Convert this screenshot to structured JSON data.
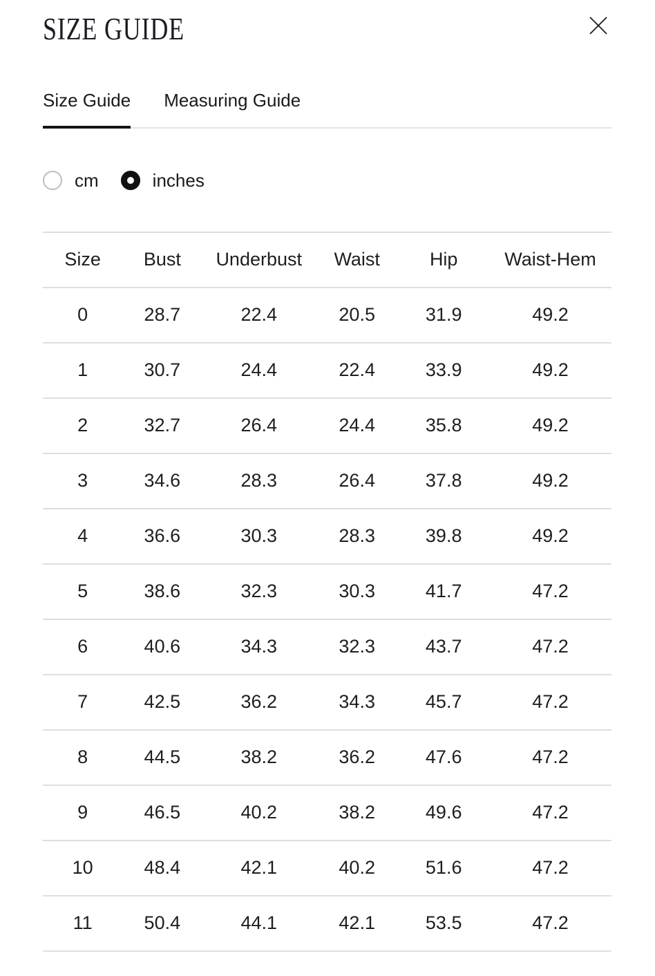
{
  "modal": {
    "title": "SIZE GUIDE"
  },
  "icons": {
    "close": "close-icon",
    "radio_unselected": "radio-circle-icon",
    "radio_selected": "radio-filled-icon"
  },
  "colors": {
    "text": "#1d1d1f",
    "tab_active_underline": "#141414",
    "divider": "#dedede",
    "radio_border": "#bdbdbd",
    "radio_selected": "#111111"
  },
  "tabs": [
    {
      "label": "Size Guide",
      "active": true
    },
    {
      "label": "Measuring Guide",
      "active": false
    }
  ],
  "units": {
    "options": [
      {
        "label": "cm",
        "selected": false
      },
      {
        "label": "inches",
        "selected": true
      }
    ]
  },
  "table": {
    "columns": [
      "Size",
      "Bust",
      "Underbust",
      "Waist",
      "Hip",
      "Waist-Hem"
    ],
    "rows": [
      [
        "0",
        "28.7",
        "22.4",
        "20.5",
        "31.9",
        "49.2"
      ],
      [
        "1",
        "30.7",
        "24.4",
        "22.4",
        "33.9",
        "49.2"
      ],
      [
        "2",
        "32.7",
        "26.4",
        "24.4",
        "35.8",
        "49.2"
      ],
      [
        "3",
        "34.6",
        "28.3",
        "26.4",
        "37.8",
        "49.2"
      ],
      [
        "4",
        "36.6",
        "30.3",
        "28.3",
        "39.8",
        "49.2"
      ],
      [
        "5",
        "38.6",
        "32.3",
        "30.3",
        "41.7",
        "47.2"
      ],
      [
        "6",
        "40.6",
        "34.3",
        "32.3",
        "43.7",
        "47.2"
      ],
      [
        "7",
        "42.5",
        "36.2",
        "34.3",
        "45.7",
        "47.2"
      ],
      [
        "8",
        "44.5",
        "38.2",
        "36.2",
        "47.6",
        "47.2"
      ],
      [
        "9",
        "46.5",
        "40.2",
        "38.2",
        "49.6",
        "47.2"
      ],
      [
        "10",
        "48.4",
        "42.1",
        "40.2",
        "51.6",
        "47.2"
      ],
      [
        "11",
        "50.4",
        "44.1",
        "42.1",
        "53.5",
        "47.2"
      ]
    ]
  }
}
